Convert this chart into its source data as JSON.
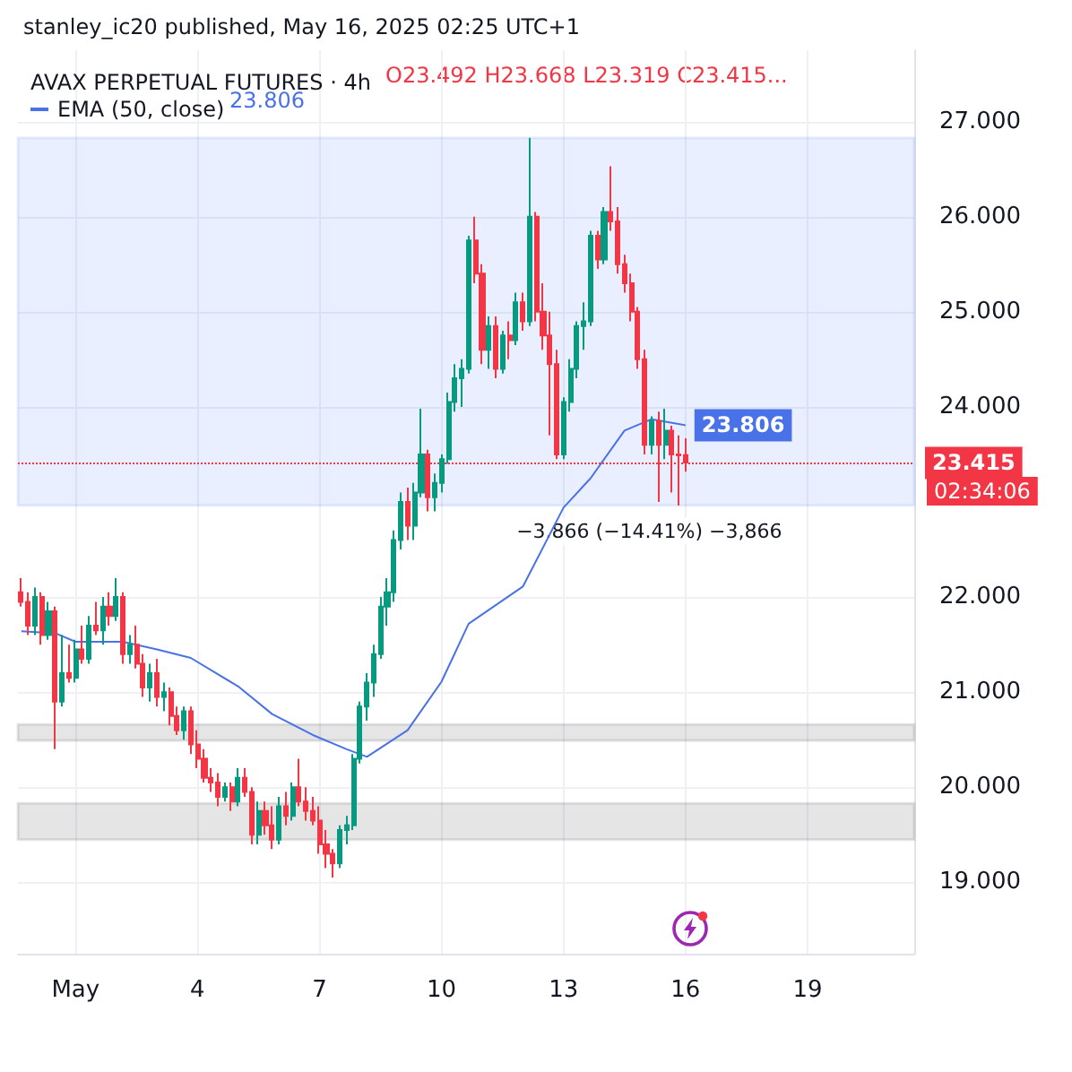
{
  "chart_data": {
    "type": "candlestick",
    "title": "AVAX PERPETUAL FUTURES · 4h",
    "subtitle": "stanley_ic20 published, May 16, 2025 02:25 UTC+1",
    "annotations": [
      "O23.492 H23.668 L23.319 C23.415...",
      "23.806",
      "02:34:06"
    ],
    "xlim": [
      "2025-04-29T14:00",
      "2025-05-21T15:00"
    ],
    "xticks": [
      {
        "value": "2025-05-01",
        "label": "May"
      },
      {
        "value": "2025-05-04",
        "label": "4"
      },
      {
        "value": "2025-05-07",
        "label": "7"
      },
      {
        "value": "2025-05-10",
        "label": "10"
      },
      {
        "value": "2025-05-13",
        "label": "13"
      },
      {
        "value": "2025-05-16",
        "label": "16"
      },
      {
        "value": "2025-05-19",
        "label": "19"
      }
    ],
    "ylim": [
      18.25,
      27.75
    ],
    "yticks": [
      {
        "value": 19,
        "label": "19.000"
      },
      {
        "value": 20,
        "label": "20.000"
      },
      {
        "value": 21,
        "label": "21.000"
      },
      {
        "value": 22,
        "label": "22.000"
      },
      {
        "value": 24,
        "label": "24.000"
      },
      {
        "value": 25,
        "label": "25.000"
      },
      {
        "value": 26,
        "label": "26.000"
      },
      {
        "value": 27,
        "label": "27.000"
      }
    ],
    "grid": true,
    "legend": "top left",
    "ref_lines": [
      {
        "axis": "y",
        "value": 23.415,
        "label": "23.415",
        "color": "#f23645",
        "line_style": "dotted"
      }
    ],
    "bands": [
      {
        "axis": "y",
        "from": 22.963,
        "to": 26.829,
        "label": "−3.866 (−14.41%) −3,866",
        "color": "#2962ff"
      },
      {
        "axis": "y",
        "from": 20.49,
        "to": 20.66,
        "color": "#000000"
      },
      {
        "axis": "y",
        "from": 19.45,
        "to": 19.83,
        "color": "#000000"
      }
    ],
    "series": [
      {
        "x": [
          "2025-04-29T16:00",
          "2025-04-29T20:00",
          "2025-04-30T00:00",
          "2025-04-30T04:00",
          "2025-04-30T08:00",
          "2025-04-30T12:00",
          "2025-04-30T16:00",
          "2025-04-30T20:00",
          "2025-05-01T00:00",
          "2025-05-01T04:00",
          "2025-05-01T08:00",
          "2025-05-01T12:00",
          "2025-05-01T16:00",
          "2025-05-01T20:00",
          "2025-05-02T00:00",
          "2025-05-02T04:00",
          "2025-05-02T08:00",
          "2025-05-02T12:00",
          "2025-05-02T16:00",
          "2025-05-02T20:00",
          "2025-05-03T00:00",
          "2025-05-03T04:00",
          "2025-05-03T08:00",
          "2025-05-03T12:00",
          "2025-05-03T16:00",
          "2025-05-03T20:00",
          "2025-05-04T00:00",
          "2025-05-04T04:00",
          "2025-05-04T08:00",
          "2025-05-04T12:00",
          "2025-05-04T16:00",
          "2025-05-04T20:00",
          "2025-05-05T00:00",
          "2025-05-05T04:00",
          "2025-05-05T08:00",
          "2025-05-05T12:00",
          "2025-05-05T16:00",
          "2025-05-05T20:00",
          "2025-05-06T00:00",
          "2025-05-06T04:00",
          "2025-05-06T08:00",
          "2025-05-06T12:00",
          "2025-05-06T16:00",
          "2025-05-06T20:00",
          "2025-05-07T00:00",
          "2025-05-07T04:00",
          "2025-05-07T08:00",
          "2025-05-07T12:00",
          "2025-05-07T16:00",
          "2025-05-07T20:00",
          "2025-05-08T00:00",
          "2025-05-08T04:00",
          "2025-05-08T08:00",
          "2025-05-08T12:00",
          "2025-05-08T16:00",
          "2025-05-08T20:00",
          "2025-05-09T00:00",
          "2025-05-09T04:00",
          "2025-05-09T08:00",
          "2025-05-09T12:00",
          "2025-05-09T16:00",
          "2025-05-09T20:00",
          "2025-05-10T00:00",
          "2025-05-10T04:00",
          "2025-05-10T08:00",
          "2025-05-10T12:00",
          "2025-05-10T16:00",
          "2025-05-10T20:00",
          "2025-05-11T00:00",
          "2025-05-11T04:00",
          "2025-05-11T08:00",
          "2025-05-11T12:00",
          "2025-05-11T16:00",
          "2025-05-11T20:00",
          "2025-05-12T00:00",
          "2025-05-12T04:00",
          "2025-05-12T08:00",
          "2025-05-12T12:00",
          "2025-05-12T16:00",
          "2025-05-12T20:00",
          "2025-05-13T00:00",
          "2025-05-13T04:00",
          "2025-05-13T08:00",
          "2025-05-13T12:00",
          "2025-05-13T16:00",
          "2025-05-13T20:00",
          "2025-05-14T00:00",
          "2025-05-14T04:00",
          "2025-05-14T08:00",
          "2025-05-14T12:00",
          "2025-05-14T16:00",
          "2025-05-14T20:00",
          "2025-05-15T00:00",
          "2025-05-15T04:00",
          "2025-05-15T08:00",
          "2025-05-15T12:00",
          "2025-05-15T16:00",
          "2025-05-15T20:00",
          "2025-05-16T00:00"
        ],
        "ohlc": [
          [
            22.05,
            22.2,
            21.9,
            21.95
          ],
          [
            21.95,
            22.05,
            21.6,
            21.7
          ],
          [
            21.7,
            22.1,
            21.6,
            22.0
          ],
          [
            22.0,
            22.05,
            21.5,
            21.6
          ],
          [
            21.6,
            21.95,
            21.55,
            21.85
          ],
          [
            21.85,
            21.9,
            20.4,
            20.9
          ],
          [
            20.9,
            21.6,
            20.85,
            21.2
          ],
          [
            21.2,
            21.5,
            21.1,
            21.15
          ],
          [
            21.15,
            21.55,
            21.1,
            21.45
          ],
          [
            21.45,
            21.7,
            21.3,
            21.35
          ],
          [
            21.35,
            21.8,
            21.3,
            21.7
          ],
          [
            21.7,
            21.95,
            21.6,
            21.65
          ],
          [
            21.65,
            22.0,
            21.5,
            21.9
          ],
          [
            21.9,
            22.05,
            21.7,
            21.8
          ],
          [
            21.8,
            22.2,
            21.75,
            22.0
          ],
          [
            22.0,
            22.05,
            21.3,
            21.4
          ],
          [
            21.4,
            21.6,
            21.3,
            21.5
          ],
          [
            21.5,
            21.7,
            21.25,
            21.3
          ],
          [
            21.3,
            21.4,
            20.95,
            21.05
          ],
          [
            21.05,
            21.3,
            20.9,
            21.2
          ],
          [
            21.2,
            21.35,
            20.85,
            20.95
          ],
          [
            20.95,
            21.1,
            20.8,
            21.0
          ],
          [
            21.0,
            21.05,
            20.65,
            20.75
          ],
          [
            20.75,
            20.85,
            20.55,
            20.6
          ],
          [
            20.6,
            20.85,
            20.5,
            20.8
          ],
          [
            20.8,
            20.85,
            20.35,
            20.45
          ],
          [
            20.45,
            20.6,
            20.2,
            20.3
          ],
          [
            20.3,
            20.4,
            20.05,
            20.1
          ],
          [
            20.1,
            20.2,
            19.95,
            20.05
          ],
          [
            20.05,
            20.15,
            19.8,
            19.9
          ],
          [
            19.9,
            20.05,
            19.85,
            20.0
          ],
          [
            20.0,
            20.05,
            19.75,
            19.85
          ],
          [
            19.85,
            20.2,
            19.8,
            20.1
          ],
          [
            20.1,
            20.2,
            19.9,
            19.95
          ],
          [
            19.95,
            20.0,
            19.4,
            19.5
          ],
          [
            19.5,
            19.85,
            19.4,
            19.75
          ],
          [
            19.75,
            19.85,
            19.5,
            19.6
          ],
          [
            19.6,
            19.8,
            19.35,
            19.45
          ],
          [
            19.45,
            19.9,
            19.4,
            19.8
          ],
          [
            19.8,
            19.95,
            19.6,
            19.7
          ],
          [
            19.7,
            20.05,
            19.65,
            20.0
          ],
          [
            20.0,
            20.3,
            19.8,
            19.85
          ],
          [
            19.85,
            20.0,
            19.65,
            19.75
          ],
          [
            19.75,
            19.9,
            19.6,
            19.65
          ],
          [
            19.65,
            19.8,
            19.3,
            19.4
          ],
          [
            19.4,
            19.55,
            19.15,
            19.3
          ],
          [
            19.3,
            19.35,
            19.05,
            19.2
          ],
          [
            19.2,
            19.6,
            19.15,
            19.55
          ],
          [
            19.55,
            19.7,
            19.4,
            19.6
          ],
          [
            19.6,
            20.35,
            19.55,
            20.3
          ],
          [
            20.3,
            20.9,
            20.25,
            20.85
          ],
          [
            20.85,
            21.2,
            20.7,
            21.1
          ],
          [
            21.1,
            21.5,
            20.95,
            21.4
          ],
          [
            21.4,
            22.0,
            21.35,
            21.9
          ],
          [
            21.9,
            22.2,
            21.7,
            22.05
          ],
          [
            22.05,
            22.7,
            21.95,
            22.6
          ],
          [
            22.6,
            23.1,
            22.5,
            23.0
          ],
          [
            23.0,
            23.15,
            22.6,
            22.75
          ],
          [
            22.75,
            23.2,
            22.6,
            23.1
          ],
          [
            23.1,
            23.98,
            23.05,
            23.5
          ],
          [
            23.5,
            23.55,
            22.9,
            23.05
          ],
          [
            23.05,
            23.3,
            22.9,
            23.2
          ],
          [
            23.2,
            23.5,
            23.1,
            23.45
          ],
          [
            23.45,
            24.15,
            23.4,
            24.05
          ],
          [
            24.05,
            24.45,
            23.95,
            24.3
          ],
          [
            24.3,
            24.5,
            24.0,
            24.4
          ],
          [
            24.4,
            25.8,
            24.35,
            25.75
          ],
          [
            25.75,
            26.0,
            25.3,
            25.4
          ],
          [
            25.4,
            25.5,
            24.45,
            24.6
          ],
          [
            24.6,
            24.95,
            24.4,
            24.85
          ],
          [
            24.85,
            24.95,
            24.3,
            24.4
          ],
          [
            24.4,
            24.8,
            24.35,
            24.75
          ],
          [
            24.75,
            24.9,
            24.5,
            24.7
          ],
          [
            24.7,
            25.2,
            24.65,
            25.1
          ],
          [
            25.1,
            25.2,
            24.8,
            24.9
          ],
          [
            24.9,
            26.829,
            24.85,
            26.0
          ],
          [
            26.0,
            26.05,
            24.9,
            25.0
          ],
          [
            25.0,
            25.3,
            24.6,
            24.75
          ],
          [
            24.75,
            25.0,
            23.7,
            24.45
          ],
          [
            24.45,
            24.6,
            23.45,
            23.5
          ],
          [
            23.5,
            24.1,
            23.45,
            24.05
          ],
          [
            24.05,
            24.5,
            23.95,
            24.4
          ],
          [
            24.4,
            24.9,
            24.3,
            24.85
          ],
          [
            24.85,
            25.1,
            24.6,
            24.9
          ],
          [
            24.9,
            25.85,
            24.85,
            25.8
          ],
          [
            25.8,
            25.85,
            25.45,
            25.55
          ],
          [
            25.55,
            26.1,
            25.5,
            26.05
          ],
          [
            26.05,
            26.53,
            25.85,
            25.95
          ],
          [
            25.95,
            26.1,
            25.4,
            25.5
          ],
          [
            25.5,
            25.6,
            25.2,
            25.3
          ],
          [
            25.3,
            25.4,
            24.9,
            25.0
          ],
          [
            25.0,
            25.05,
            24.4,
            24.5
          ],
          [
            24.5,
            24.6,
            23.5,
            23.6
          ],
          [
            23.6,
            23.9,
            23.5,
            23.85
          ],
          [
            23.85,
            23.95,
            23.0,
            23.6
          ],
          [
            23.6,
            23.98,
            23.45,
            23.75
          ],
          [
            23.75,
            23.8,
            23.1,
            23.5
          ],
          [
            23.5,
            23.7,
            22.963,
            23.49
          ],
          [
            23.492,
            23.668,
            23.319,
            23.415
          ]
        ],
        "colors": [
          "#f23645",
          "#f23645",
          "#089981",
          "#f23645",
          "#089981",
          "#f23645",
          "#089981",
          "#f23645",
          "#089981",
          "#f23645",
          "#089981",
          "#f23645",
          "#089981",
          "#f23645",
          "#089981",
          "#f23645",
          "#089981",
          "#f23645",
          "#f23645",
          "#089981",
          "#f23645",
          "#089981",
          "#f23645",
          "#f23645",
          "#089981",
          "#f23645",
          "#f23645",
          "#f23645",
          "#f23645",
          "#f23645",
          "#089981",
          "#f23645",
          "#089981",
          "#f23645",
          "#f23645",
          "#089981",
          "#f23645",
          "#f23645",
          "#089981",
          "#f23645",
          "#089981",
          "#f23645",
          "#f23645",
          "#f23645",
          "#f23645",
          "#f23645",
          "#f23645",
          "#089981",
          "#089981",
          "#089981",
          "#089981",
          "#089981",
          "#089981",
          "#089981",
          "#089981",
          "#089981",
          "#089981",
          "#f23645",
          "#089981",
          "#089981",
          "#f23645",
          "#089981",
          "#089981",
          "#089981",
          "#089981",
          "#089981",
          "#089981",
          "#f23645",
          "#f23645",
          "#089981",
          "#f23645",
          "#089981",
          "#f23645",
          "#089981",
          "#f23645",
          "#089981",
          "#f23645",
          "#f23645",
          "#f23645",
          "#f23645",
          "#089981",
          "#089981",
          "#089981",
          "#089981",
          "#089981",
          "#f23645",
          "#089981",
          "#f23645",
          "#f23645",
          "#f23645",
          "#f23645",
          "#f23645",
          "#f23645",
          "#089981",
          "#f23645",
          "#089981",
          "#f23645",
          "#f23645",
          "#f23645"
        ]
      },
      {
        "type": "line",
        "name": "EMA (50, close)",
        "color": "#4a72e8",
        "x": [
          "2025-04-29T16:00",
          "2025-04-30T12:00",
          "2025-05-01T00:00",
          "2025-05-02T04:00",
          "2025-05-03T00:00",
          "2025-05-03T20:00",
          "2025-05-05T00:00",
          "2025-05-05T20:00",
          "2025-05-06T20:00",
          "2025-05-07T16:00",
          "2025-05-08T04:00",
          "2025-05-09T04:00",
          "2025-05-10T00:00",
          "2025-05-10T16:00",
          "2025-05-12T00:00",
          "2025-05-13T00:00",
          "2025-05-13T16:00",
          "2025-05-14T12:00",
          "2025-05-15T04:00",
          "2025-05-16T00:00"
        ],
        "values": [
          21.64,
          21.62,
          21.53,
          21.53,
          21.45,
          21.36,
          21.06,
          20.77,
          20.55,
          20.4,
          20.32,
          20.6,
          21.11,
          21.72,
          22.11,
          22.94,
          23.25,
          23.75,
          23.87,
          23.806
        ],
        "value_labels": [
          null,
          null,
          null,
          null,
          null,
          null,
          null,
          null,
          null,
          null,
          null,
          null,
          null,
          null,
          null,
          null,
          null,
          null,
          null,
          "23.806"
        ]
      }
    ]
  }
}
